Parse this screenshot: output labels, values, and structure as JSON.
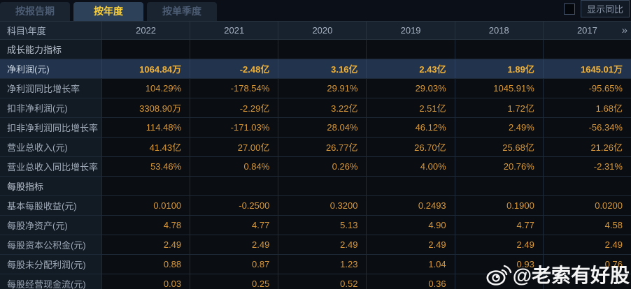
{
  "tabbar": {
    "tabs": [
      {
        "label": "按报告期",
        "active": false
      },
      {
        "label": "按年度",
        "active": true
      },
      {
        "label": "按单季度",
        "active": false
      }
    ],
    "show_yoy": {
      "label": "显示同比",
      "checked": false
    }
  },
  "table": {
    "corner_label": "科目\\年度",
    "years": [
      "2022",
      "2021",
      "2020",
      "2019",
      "2018",
      "2017"
    ],
    "more_icon": "»",
    "rows": [
      {
        "type": "section",
        "label": "成长能力指标",
        "values": [
          "",
          "",
          "",
          "",
          "",
          ""
        ]
      },
      {
        "type": "selected",
        "label": "净利润(元)",
        "values": [
          "1064.84万",
          "-2.48亿",
          "3.16亿",
          "2.43亿",
          "1.89亿",
          "1645.01万"
        ]
      },
      {
        "type": "data",
        "label": "净利润同比增长率",
        "values": [
          "104.29%",
          "-178.54%",
          "29.91%",
          "29.03%",
          "1045.91%",
          "-95.65%"
        ]
      },
      {
        "type": "data",
        "label": "扣非净利润(元)",
        "values": [
          "3308.90万",
          "-2.29亿",
          "3.22亿",
          "2.51亿",
          "1.72亿",
          "1.68亿"
        ]
      },
      {
        "type": "data",
        "label": "扣非净利润同比增长率",
        "values": [
          "114.48%",
          "-171.03%",
          "28.04%",
          "46.12%",
          "2.49%",
          "-56.34%"
        ]
      },
      {
        "type": "data",
        "label": "营业总收入(元)",
        "values": [
          "41.43亿",
          "27.00亿",
          "26.77亿",
          "26.70亿",
          "25.68亿",
          "21.26亿"
        ]
      },
      {
        "type": "data",
        "label": "营业总收入同比增长率",
        "values": [
          "53.46%",
          "0.84%",
          "0.26%",
          "4.00%",
          "20.76%",
          "-2.31%"
        ]
      },
      {
        "type": "section",
        "label": "每股指标",
        "values": [
          "",
          "",
          "",
          "",
          "",
          ""
        ]
      },
      {
        "type": "data",
        "label": "基本每股收益(元)",
        "values": [
          "0.0100",
          "-0.2500",
          "0.3200",
          "0.2493",
          "0.1900",
          "0.0200"
        ]
      },
      {
        "type": "data",
        "label": "每股净资产(元)",
        "values": [
          "4.78",
          "4.77",
          "5.13",
          "4.90",
          "4.77",
          "4.58"
        ]
      },
      {
        "type": "data",
        "label": "每股资本公积金(元)",
        "values": [
          "2.49",
          "2.49",
          "2.49",
          "2.49",
          "2.49",
          "2.49"
        ]
      },
      {
        "type": "data",
        "label": "每股未分配利润(元)",
        "values": [
          "0.88",
          "0.87",
          "1.23",
          "1.04",
          "0.93",
          "0.76"
        ]
      },
      {
        "type": "data",
        "label": "每股经营现金流(元)",
        "values": [
          "0.03",
          "0.25",
          "0.52",
          "0.36",
          "",
          ""
        ]
      }
    ]
  },
  "watermark": {
    "text": "@老索有好股"
  },
  "colors": {
    "background": "#0a0e14",
    "value_gold": "#d9993a",
    "selected_row_bg": "#22334d",
    "selected_value_gold": "#f1b135",
    "active_tab_yellow": "#ffd23a"
  }
}
